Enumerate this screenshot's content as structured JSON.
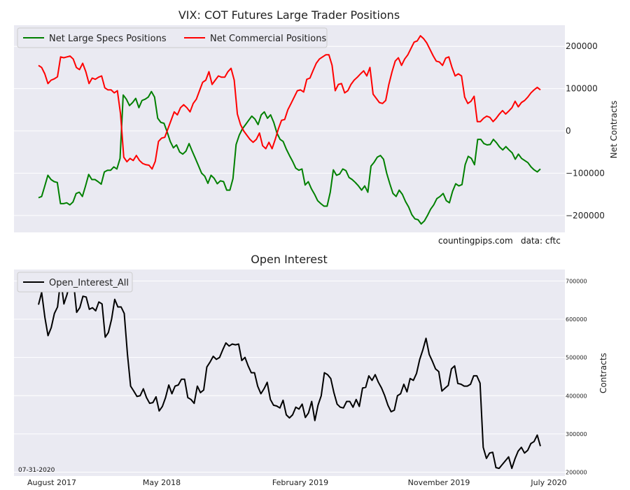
{
  "chart_data": [
    {
      "type": "line",
      "title": "VIX: COT Futures Large Trader Positions",
      "ylabel": "Net Contracts",
      "ylim": [
        -240000,
        250000
      ],
      "yticks": [
        -200000,
        -100000,
        0,
        100000,
        200000
      ],
      "ytick_labels": [
        "−200000",
        "−100000",
        "0",
        "100000",
        "200000"
      ],
      "legend": "top-left",
      "grid": true,
      "series": [
        {
          "name": "Net Large Specs Positions",
          "color": "#008000",
          "values": [
            -158000,
            -155000,
            -130000,
            -105000,
            -115000,
            -120000,
            -122000,
            -172000,
            -172000,
            -170000,
            -175000,
            -168000,
            -148000,
            -145000,
            -155000,
            -130000,
            -103000,
            -115000,
            -115000,
            -120000,
            -126000,
            -97000,
            -93000,
            -93000,
            -85000,
            -90000,
            -65000,
            85000,
            75000,
            60000,
            67000,
            77000,
            55000,
            72000,
            75000,
            80000,
            93000,
            80000,
            30000,
            20000,
            18000,
            -2000,
            -25000,
            -40000,
            -33000,
            -50000,
            -55000,
            -48000,
            -30000,
            -48000,
            -65000,
            -82000,
            -100000,
            -107000,
            -124000,
            -105000,
            -112000,
            -125000,
            -118000,
            -120000,
            -140000,
            -140000,
            -113000,
            -32000,
            -10000,
            5000,
            15000,
            25000,
            35000,
            28000,
            15000,
            38000,
            45000,
            30000,
            38000,
            20000,
            -5000,
            -20000,
            -25000,
            -43000,
            -58000,
            -72000,
            -88000,
            -93000,
            -90000,
            -128000,
            -120000,
            -137000,
            -150000,
            -165000,
            -172000,
            -178000,
            -178000,
            -145000,
            -92000,
            -105000,
            -102000,
            -90000,
            -94000,
            -110000,
            -115000,
            -122000,
            -130000,
            -140000,
            -130000,
            -145000,
            -83000,
            -74000,
            -62000,
            -58000,
            -67000,
            -100000,
            -125000,
            -148000,
            -155000,
            -140000,
            -150000,
            -167000,
            -180000,
            -198000,
            -208000,
            -210000,
            -220000,
            -213000,
            -200000,
            -185000,
            -175000,
            -160000,
            -155000,
            -148000,
            -165000,
            -170000,
            -143000,
            -125000,
            -130000,
            -127000,
            -80000,
            -60000,
            -65000,
            -80000,
            -20000,
            -20000,
            -30000,
            -33000,
            -32000,
            -20000,
            -28000,
            -38000,
            -45000,
            -37000,
            -45000,
            -52000,
            -67000,
            -55000,
            -65000,
            -70000,
            -75000,
            -85000,
            -92000,
            -97000,
            -90000
          ]
        },
        {
          "name": "Net Commercial Positions",
          "color": "#ff0000",
          "values": [
            155000,
            150000,
            135000,
            112000,
            120000,
            123000,
            128000,
            175000,
            173000,
            175000,
            177000,
            170000,
            150000,
            145000,
            160000,
            140000,
            112000,
            125000,
            122000,
            127000,
            130000,
            102000,
            97000,
            97000,
            90000,
            95000,
            40000,
            -62000,
            -73000,
            -65000,
            -70000,
            -58000,
            -70000,
            -77000,
            -80000,
            -81000,
            -90000,
            -72000,
            -25000,
            -17000,
            -15000,
            5000,
            25000,
            45000,
            38000,
            55000,
            62000,
            55000,
            45000,
            65000,
            75000,
            95000,
            115000,
            120000,
            140000,
            110000,
            120000,
            130000,
            127000,
            127000,
            140000,
            148000,
            120000,
            40000,
            15000,
            0,
            -10000,
            -20000,
            -27000,
            -20000,
            -5000,
            -35000,
            -42000,
            -27000,
            -42000,
            -20000,
            5000,
            25000,
            27000,
            50000,
            65000,
            80000,
            95000,
            97000,
            92000,
            122000,
            125000,
            143000,
            160000,
            170000,
            175000,
            180000,
            180000,
            155000,
            95000,
            110000,
            112000,
            90000,
            95000,
            110000,
            120000,
            127000,
            135000,
            142000,
            130000,
            150000,
            87000,
            77000,
            67000,
            65000,
            72000,
            110000,
            140000,
            165000,
            173000,
            155000,
            170000,
            180000,
            195000,
            210000,
            213000,
            225000,
            218000,
            208000,
            193000,
            178000,
            165000,
            163000,
            155000,
            172000,
            175000,
            150000,
            130000,
            135000,
            130000,
            80000,
            65000,
            70000,
            82000,
            22000,
            22000,
            30000,
            35000,
            32000,
            22000,
            30000,
            40000,
            48000,
            40000,
            47000,
            55000,
            70000,
            57000,
            67000,
            72000,
            80000,
            90000,
            97000,
            103000,
            97000
          ]
        }
      ]
    },
    {
      "type": "line",
      "title": "Open Interest",
      "ylabel": "Contracts",
      "ylim": [
        190000,
        730000
      ],
      "yticks": [
        200000,
        300000,
        400000,
        500000,
        600000,
        700000
      ],
      "ytick_labels": [
        "200000",
        "300000",
        "400000",
        "500000",
        "600000",
        "700000"
      ],
      "x_tick_labels": [
        "August 2017",
        "May 2018",
        "February 2019",
        "November 2019",
        "July 2020"
      ],
      "legend": "top-left",
      "grid": true,
      "series": [
        {
          "name": "Open_Interest_All",
          "color": "#000000",
          "values": [
            638000,
            670000,
            605000,
            557000,
            578000,
            615000,
            632000,
            705000,
            640000,
            665000,
            700000,
            700000,
            618000,
            630000,
            660000,
            658000,
            626000,
            630000,
            622000,
            645000,
            640000,
            553000,
            565000,
            600000,
            652000,
            632000,
            632000,
            615000,
            508000,
            425000,
            412000,
            398000,
            400000,
            418000,
            395000,
            380000,
            382000,
            397000,
            360000,
            372000,
            395000,
            428000,
            405000,
            425000,
            428000,
            443000,
            443000,
            395000,
            390000,
            380000,
            425000,
            408000,
            415000,
            475000,
            488000,
            503000,
            495000,
            500000,
            520000,
            538000,
            530000,
            535000,
            533000,
            535000,
            492000,
            500000,
            478000,
            460000,
            460000,
            425000,
            405000,
            418000,
            435000,
            390000,
            375000,
            373000,
            368000,
            388000,
            350000,
            342000,
            350000,
            370000,
            365000,
            378000,
            343000,
            355000,
            385000,
            335000,
            375000,
            400000,
            460000,
            455000,
            445000,
            408000,
            378000,
            370000,
            368000,
            385000,
            385000,
            370000,
            390000,
            372000,
            420000,
            422000,
            452000,
            440000,
            455000,
            435000,
            420000,
            400000,
            375000,
            358000,
            362000,
            400000,
            405000,
            430000,
            410000,
            445000,
            440000,
            458000,
            495000,
            520000,
            550000,
            508000,
            490000,
            470000,
            463000,
            412000,
            420000,
            427000,
            470000,
            478000,
            432000,
            430000,
            425000,
            425000,
            430000,
            452000,
            452000,
            433000,
            265000,
            236000,
            250000,
            252000,
            212000,
            210000,
            220000,
            230000,
            240000,
            210000,
            235000,
            255000,
            265000,
            250000,
            257000,
            275000,
            280000,
            297000,
            268000
          ]
        }
      ]
    }
  ],
  "watermark": "countingpips.com",
  "source_note": "data: cftc",
  "date_note": "07-31-2020"
}
